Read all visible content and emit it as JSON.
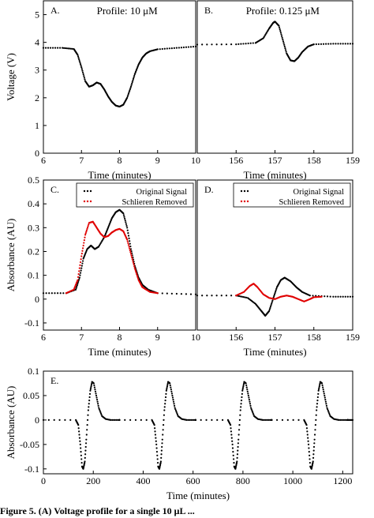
{
  "chart_data": [
    {
      "id": "A",
      "type": "scatter",
      "panel_label": "A.",
      "title": "Profile: 10 μM",
      "xlabel": "Time (minutes)",
      "ylabel": "Voltage (V)",
      "xlim": [
        6,
        10
      ],
      "ylim": [
        0,
        5.5
      ],
      "xticks": [
        "6",
        "7",
        "8",
        "9",
        "10"
      ],
      "xtick_values": [
        6,
        7,
        8,
        9,
        10
      ],
      "yticks": [
        "0",
        "1",
        "2",
        "3",
        "4",
        "5"
      ],
      "ytick_values": [
        0,
        1,
        2,
        3,
        4,
        5
      ],
      "series": [
        {
          "color": "#000000",
          "points": [
            [
              6.0,
              3.8
            ],
            [
              6.5,
              3.8
            ],
            [
              6.8,
              3.76
            ],
            [
              6.9,
              3.55
            ],
            [
              7.0,
              3.1
            ],
            [
              7.1,
              2.6
            ],
            [
              7.2,
              2.4
            ],
            [
              7.3,
              2.45
            ],
            [
              7.4,
              2.55
            ],
            [
              7.5,
              2.5
            ],
            [
              7.6,
              2.3
            ],
            [
              7.7,
              2.05
            ],
            [
              7.8,
              1.85
            ],
            [
              7.9,
              1.72
            ],
            [
              8.0,
              1.68
            ],
            [
              8.1,
              1.75
            ],
            [
              8.2,
              2.0
            ],
            [
              8.3,
              2.4
            ],
            [
              8.4,
              2.85
            ],
            [
              8.5,
              3.2
            ],
            [
              8.6,
              3.45
            ],
            [
              8.7,
              3.6
            ],
            [
              8.8,
              3.68
            ],
            [
              9.0,
              3.75
            ],
            [
              9.5,
              3.8
            ],
            [
              10.0,
              3.85
            ]
          ]
        }
      ]
    },
    {
      "id": "B",
      "type": "scatter",
      "panel_label": "B.",
      "title": "Profile: 0.125 μM",
      "xlabel": "Time (minutes)",
      "ylabel": "",
      "xlim": [
        155,
        159
      ],
      "ylim": [
        0,
        5.5
      ],
      "xticks": [
        "156",
        "157",
        "158",
        "159"
      ],
      "xtick_values": [
        156,
        157,
        158,
        159
      ],
      "yticks": [],
      "ytick_values": [],
      "series": [
        {
          "color": "#000000",
          "points": [
            [
              155.0,
              3.92
            ],
            [
              156.0,
              3.93
            ],
            [
              156.5,
              3.98
            ],
            [
              156.7,
              4.15
            ],
            [
              156.85,
              4.5
            ],
            [
              156.95,
              4.7
            ],
            [
              157.0,
              4.75
            ],
            [
              157.1,
              4.6
            ],
            [
              157.2,
              4.1
            ],
            [
              157.3,
              3.6
            ],
            [
              157.4,
              3.35
            ],
            [
              157.5,
              3.32
            ],
            [
              157.6,
              3.45
            ],
            [
              157.7,
              3.65
            ],
            [
              157.85,
              3.85
            ],
            [
              158.0,
              3.93
            ],
            [
              158.5,
              3.95
            ],
            [
              159.0,
              3.95
            ]
          ]
        }
      ]
    },
    {
      "id": "C",
      "type": "scatter",
      "panel_label": "C.",
      "xlabel": "Time (minutes)",
      "ylabel": "Absorbance (AU)",
      "xlim": [
        6,
        10
      ],
      "ylim": [
        -0.13,
        0.5
      ],
      "xticks": [
        "6",
        "7",
        "8",
        "9",
        "10"
      ],
      "xtick_values": [
        6,
        7,
        8,
        9,
        10
      ],
      "yticks": [
        "-0.1",
        "0",
        "0.1",
        "0.2",
        "0.3",
        "0.4",
        "0.5"
      ],
      "ytick_values": [
        -0.1,
        0,
        0.1,
        0.2,
        0.3,
        0.4,
        0.5
      ],
      "legend": {
        "position": "top-right",
        "entries": [
          "Original Signal",
          "Schlieren Removed"
        ]
      },
      "series": [
        {
          "name": "Original Signal",
          "color": "#000000",
          "points": [
            [
              6.0,
              0.025
            ],
            [
              6.6,
              0.025
            ],
            [
              6.85,
              0.04
            ],
            [
              6.95,
              0.09
            ],
            [
              7.05,
              0.17
            ],
            [
              7.15,
              0.21
            ],
            [
              7.25,
              0.225
            ],
            [
              7.35,
              0.21
            ],
            [
              7.45,
              0.22
            ],
            [
              7.6,
              0.26
            ],
            [
              7.7,
              0.3
            ],
            [
              7.8,
              0.34
            ],
            [
              7.9,
              0.365
            ],
            [
              8.0,
              0.375
            ],
            [
              8.1,
              0.36
            ],
            [
              8.2,
              0.3
            ],
            [
              8.3,
              0.21
            ],
            [
              8.4,
              0.14
            ],
            [
              8.5,
              0.09
            ],
            [
              8.6,
              0.06
            ],
            [
              8.75,
              0.04
            ],
            [
              9.0,
              0.025
            ],
            [
              10.0,
              0.02
            ]
          ]
        },
        {
          "name": "Schlieren Removed",
          "color": "#e00000",
          "points": [
            [
              6.6,
              0.025
            ],
            [
              6.8,
              0.04
            ],
            [
              6.9,
              0.08
            ],
            [
              7.0,
              0.18
            ],
            [
              7.1,
              0.27
            ],
            [
              7.2,
              0.32
            ],
            [
              7.3,
              0.325
            ],
            [
              7.4,
              0.3
            ],
            [
              7.5,
              0.275
            ],
            [
              7.6,
              0.26
            ],
            [
              7.7,
              0.265
            ],
            [
              7.8,
              0.28
            ],
            [
              7.9,
              0.29
            ],
            [
              8.0,
              0.295
            ],
            [
              8.1,
              0.285
            ],
            [
              8.2,
              0.25
            ],
            [
              8.3,
              0.19
            ],
            [
              8.4,
              0.13
            ],
            [
              8.5,
              0.08
            ],
            [
              8.6,
              0.05
            ],
            [
              8.8,
              0.03
            ],
            [
              9.0,
              0.025
            ]
          ]
        }
      ]
    },
    {
      "id": "D",
      "type": "scatter",
      "panel_label": "D.",
      "xlabel": "Time (minutes)",
      "ylabel": "",
      "xlim": [
        155,
        159
      ],
      "ylim": [
        -0.13,
        0.5
      ],
      "xticks": [
        "156",
        "157",
        "158",
        "159"
      ],
      "xtick_values": [
        156,
        157,
        158,
        159
      ],
      "yticks": [],
      "ytick_values": [],
      "legend": {
        "position": "top-right",
        "entries": [
          "Original Signal",
          "Schlieren Removed"
        ]
      },
      "series": [
        {
          "name": "Original Signal",
          "color": "#000000",
          "points": [
            [
              155.0,
              0.015
            ],
            [
              156.0,
              0.015
            ],
            [
              156.3,
              0.005
            ],
            [
              156.5,
              -0.02
            ],
            [
              156.65,
              -0.05
            ],
            [
              156.75,
              -0.07
            ],
            [
              156.85,
              -0.05
            ],
            [
              156.95,
              0.0
            ],
            [
              157.05,
              0.05
            ],
            [
              157.15,
              0.08
            ],
            [
              157.25,
              0.09
            ],
            [
              157.4,
              0.075
            ],
            [
              157.55,
              0.05
            ],
            [
              157.7,
              0.03
            ],
            [
              157.9,
              0.015
            ],
            [
              158.5,
              0.01
            ],
            [
              159.0,
              0.01
            ]
          ]
        },
        {
          "name": "Schlieren Removed",
          "color": "#e00000",
          "points": [
            [
              156.0,
              0.015
            ],
            [
              156.2,
              0.03
            ],
            [
              156.35,
              0.055
            ],
            [
              156.45,
              0.065
            ],
            [
              156.55,
              0.05
            ],
            [
              156.7,
              0.02
            ],
            [
              156.85,
              0.005
            ],
            [
              157.0,
              0.0
            ],
            [
              157.15,
              0.01
            ],
            [
              157.3,
              0.015
            ],
            [
              157.45,
              0.01
            ],
            [
              157.6,
              0.0
            ],
            [
              157.75,
              -0.01
            ],
            [
              157.9,
              0.0
            ],
            [
              158.0,
              0.008
            ],
            [
              158.2,
              0.01
            ]
          ]
        }
      ]
    },
    {
      "id": "E",
      "type": "scatter",
      "panel_label": "E.",
      "xlabel": "Time (minutes)",
      "ylabel": "Absorbance (AU)",
      "xlim": [
        0,
        1240
      ],
      "ylim": [
        -0.11,
        0.1
      ],
      "xticks": [
        "0",
        "200",
        "400",
        "600",
        "800",
        "1000",
        "1200"
      ],
      "xtick_values": [
        0,
        200,
        400,
        600,
        800,
        1000,
        1200
      ],
      "yticks": [
        "-0.1",
        "-0.05",
        "0",
        "0.05",
        "0.1"
      ],
      "ytick_values": [
        -0.1,
        -0.05,
        0,
        0.05,
        0.1
      ],
      "series": [
        {
          "color": "#000000",
          "periodic": {
            "period": 305,
            "count": 4,
            "start": 0
          },
          "template": [
            [
              0,
              0.0
            ],
            [
              130,
              0.0
            ],
            [
              140,
              -0.01
            ],
            [
              148,
              -0.05
            ],
            [
              155,
              -0.095
            ],
            [
              160,
              -0.1
            ],
            [
              166,
              -0.085
            ],
            [
              172,
              -0.04
            ],
            [
              180,
              0.02
            ],
            [
              188,
              0.06
            ],
            [
              195,
              0.078
            ],
            [
              202,
              0.075
            ],
            [
              212,
              0.05
            ],
            [
              222,
              0.025
            ],
            [
              235,
              0.008
            ],
            [
              250,
              0.002
            ],
            [
              270,
              0.0
            ],
            [
              305,
              0.0
            ]
          ],
          "tail": [
            [
              1220,
              0.0
            ],
            [
              1240,
              0.0
            ]
          ]
        }
      ]
    }
  ],
  "caption": "Figure 5. (A) Voltage profile for a single 10 μL ..."
}
